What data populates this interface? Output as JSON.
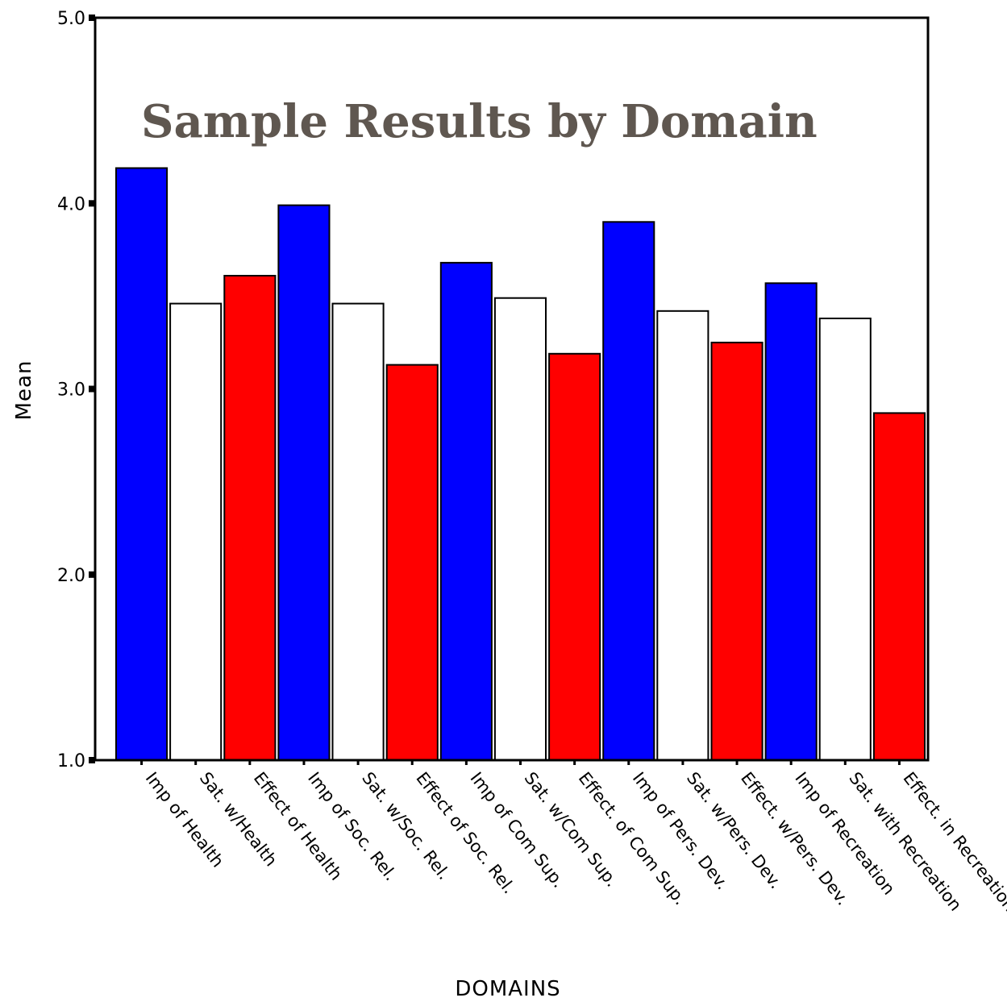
{
  "chart_data": {
    "type": "bar",
    "title": "Sample Results by Domain",
    "xlabel": "DOMAINS",
    "ylabel": "Mean",
    "ylim": [
      1.0,
      5.0
    ],
    "yticks": [
      "1.0",
      "2.0",
      "3.0",
      "4.0",
      "5.0"
    ],
    "grid": false,
    "categories": [
      "Imp of Health",
      "Sat. w/Health",
      "Effect of Health",
      "Imp of Soc. Rel.",
      "Sat. w/Soc. Rel.",
      "Effect of Soc. Rel.",
      "Imp of Com Sup.",
      "Sat. w/Com Sup.",
      "Effect. of Com Sup.",
      "Imp of Pers. Dev.",
      "Sat. w/Pers. Dev.",
      "Effect. w/Pers. Dev.",
      "Imp of Recreation",
      "Sat. with Recreation",
      "Effect. in Recreation"
    ],
    "values": [
      4.19,
      3.46,
      3.61,
      3.99,
      3.46,
      3.13,
      3.68,
      3.49,
      3.19,
      3.9,
      3.42,
      3.25,
      3.57,
      3.38,
      2.87
    ],
    "colors": [
      "#0000ff",
      "#ffffff",
      "#ff0000",
      "#0000ff",
      "#ffffff",
      "#ff0000",
      "#0000ff",
      "#ffffff",
      "#ff0000",
      "#0000ff",
      "#ffffff",
      "#ff0000",
      "#0000ff",
      "#ffffff",
      "#ff0000"
    ]
  }
}
